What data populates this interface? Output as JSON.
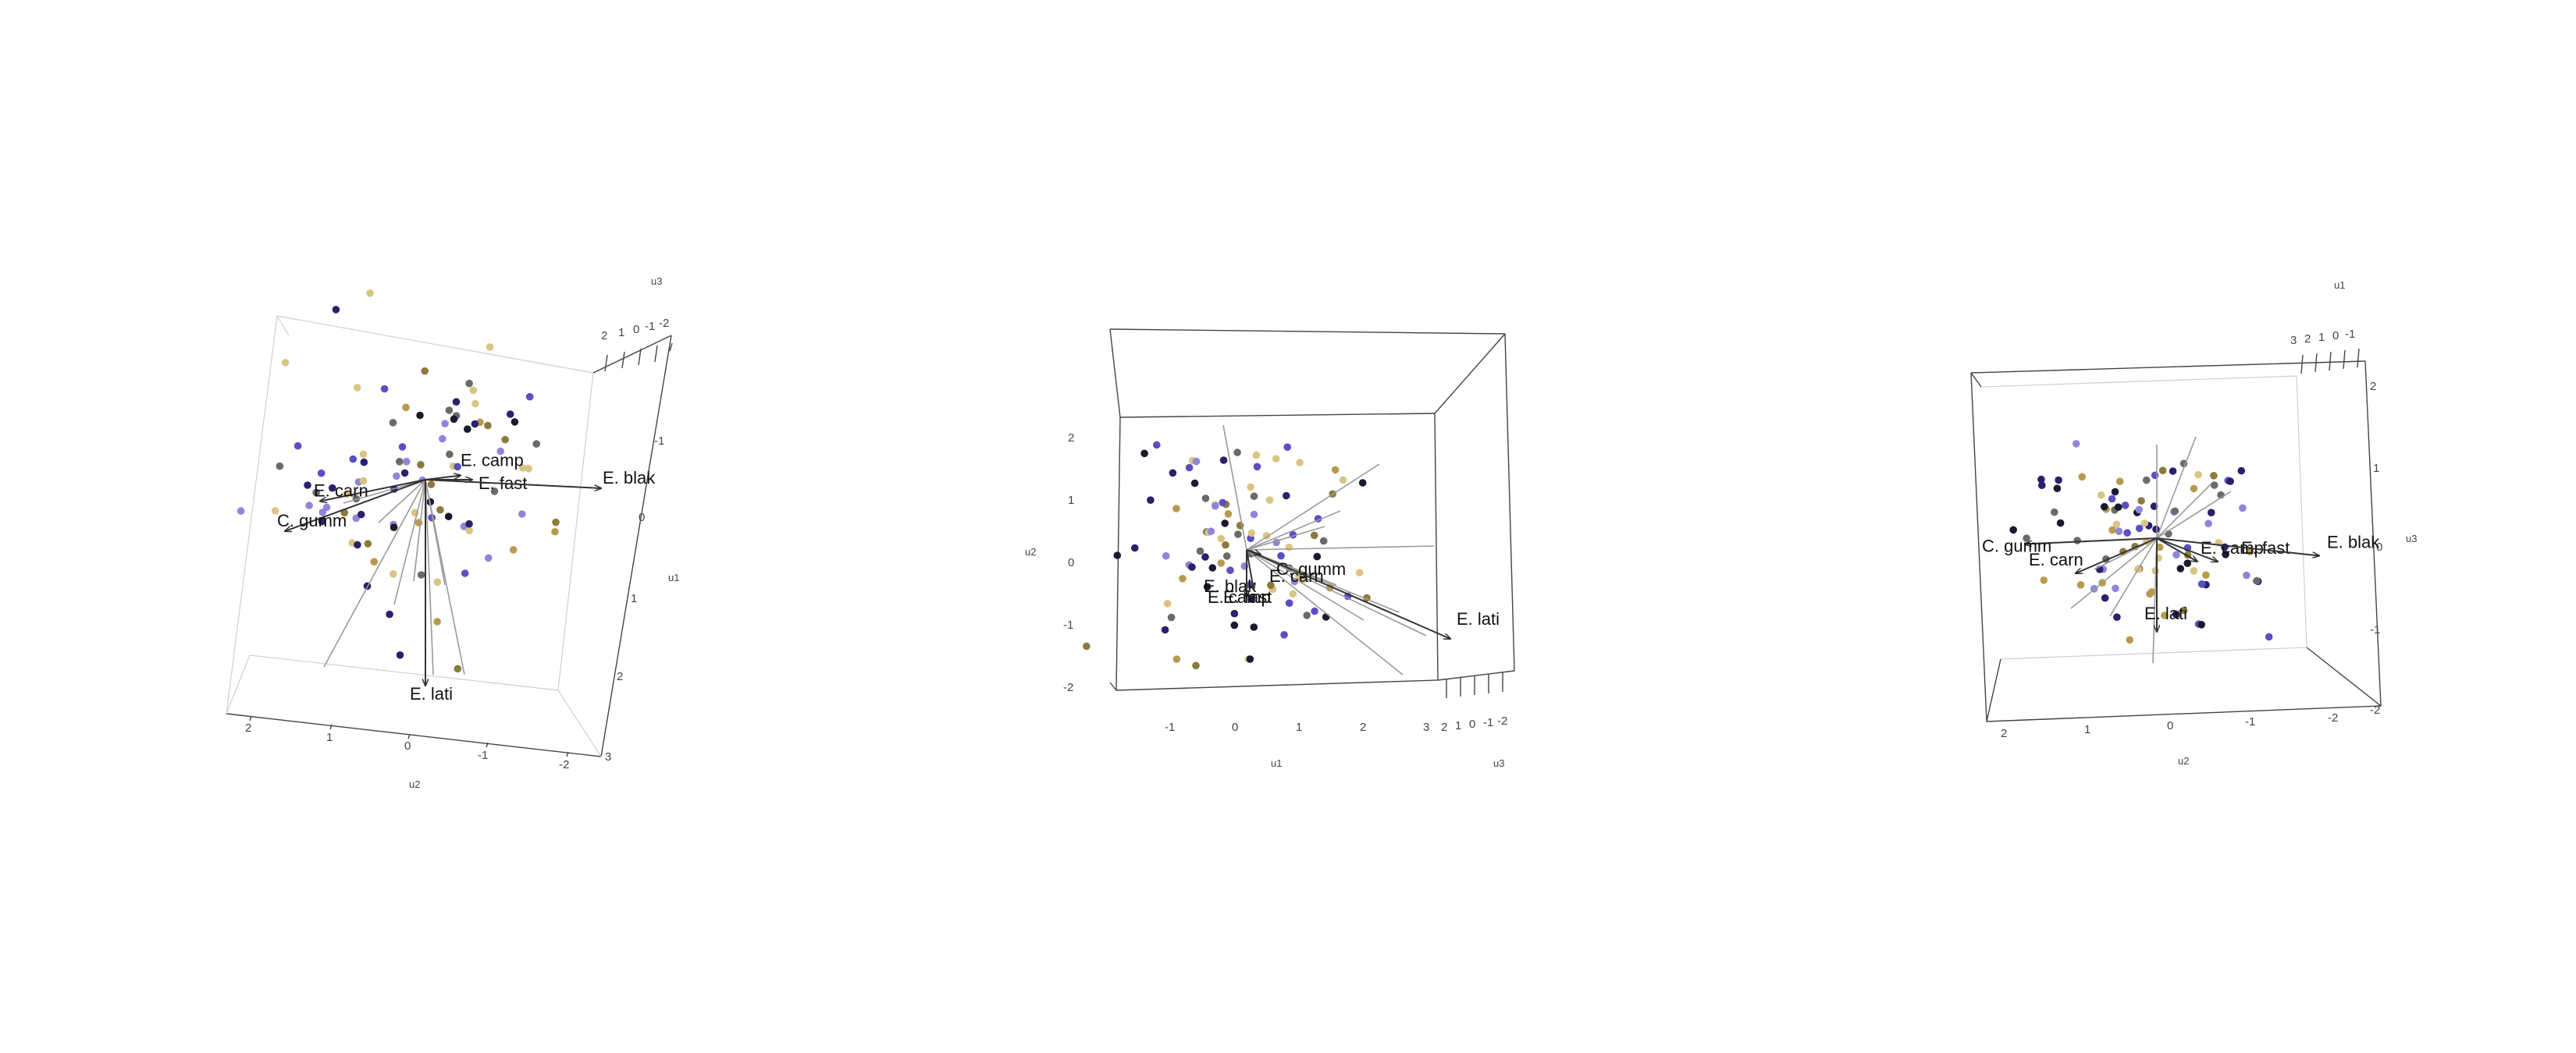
{
  "chart_data": [
    {
      "type": "scatter",
      "title": "",
      "view": "top-left rotation",
      "axes": [
        {
          "name": "u1",
          "ticks": [
            "-1",
            "0",
            "1",
            "2",
            "3"
          ]
        },
        {
          "name": "u2",
          "ticks": [
            "2",
            "1",
            "0",
            "-1",
            "-2"
          ]
        },
        {
          "name": "u3",
          "ticks": [
            "2",
            "1",
            "0",
            "-1",
            "-2"
          ]
        }
      ],
      "species": [
        {
          "name": "E. carn",
          "value": [
            -0.9,
            0.25
          ]
        },
        {
          "name": "C. gumm",
          "value": [
            -1.2,
            0.6
          ]
        },
        {
          "name": "E. camp",
          "value": [
            0.3,
            -0.05
          ]
        },
        {
          "name": "E. fast",
          "value": [
            0.4,
            0.0
          ]
        },
        {
          "name": "E. blak",
          "value": [
            1.5,
            0.1
          ]
        },
        {
          "name": "E. lati",
          "value": [
            0.0,
            2.4
          ]
        }
      ]
    },
    {
      "type": "scatter",
      "title": "",
      "view": "front rotation",
      "axes": [
        {
          "name": "u1",
          "ticks": [
            "-1",
            "0",
            "1",
            "2",
            "3"
          ]
        },
        {
          "name": "u2",
          "ticks": [
            "2",
            "1",
            "0",
            "-1",
            "-2"
          ]
        },
        {
          "name": "u3",
          "ticks": [
            "2",
            "1",
            "0",
            "-1",
            "-2"
          ]
        }
      ],
      "species": [
        {
          "name": "E. blak",
          "value": [
            0.0,
            1.0
          ]
        },
        {
          "name": "E. camp",
          "value": [
            0.0,
            1.0
          ]
        },
        {
          "name": "E. fast",
          "value": [
            0.0,
            1.0
          ]
        },
        {
          "name": "E. carn",
          "value": [
            0.1,
            0.85
          ]
        },
        {
          "name": "C. gumm",
          "value": [
            0.2,
            0.1
          ]
        },
        {
          "name": "E. lati",
          "value": [
            2.9,
            1.9
          ]
        }
      ]
    },
    {
      "type": "scatter",
      "title": "",
      "view": "right rotation",
      "axes": [
        {
          "name": "u1",
          "ticks": [
            "3",
            "2",
            "1",
            "0",
            "-1"
          ]
        },
        {
          "name": "u2",
          "ticks": [
            "2",
            "1",
            "0",
            "-1",
            "-2"
          ]
        },
        {
          "name": "u3",
          "ticks": [
            "2",
            "1",
            "0",
            "-1",
            "-2"
          ]
        }
      ],
      "species": [
        {
          "name": "E. lati",
          "value": [
            0.0,
            1.6
          ]
        },
        {
          "name": "E. carn",
          "value": [
            -0.8,
            0.6
          ]
        },
        {
          "name": "C. gumm",
          "value": [
            -1.3,
            0.1
          ]
        },
        {
          "name": "E. camp",
          "value": [
            0.4,
            0.4
          ]
        },
        {
          "name": "E. fast",
          "value": [
            0.6,
            0.4
          ]
        },
        {
          "name": "E. blak",
          "value": [
            1.6,
            0.3
          ]
        }
      ]
    }
  ],
  "colors": {
    "point_palette": [
      "#2b1f6e",
      "#5a4fc4",
      "#8d86d9",
      "#1a1a2e",
      "#8c7a3b",
      "#b89a4e",
      "#d9c483",
      "#6a6a6a"
    ],
    "arrow": "#333333",
    "line": "#9a9a9a",
    "box": "#444444"
  }
}
